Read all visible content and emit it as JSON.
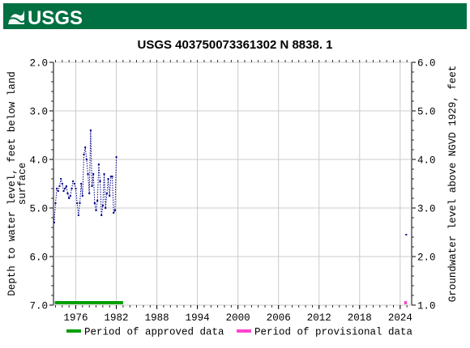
{
  "header": {
    "logo_text": "USGS",
    "band_color": "#006f41"
  },
  "chart_data": {
    "type": "scatter",
    "title": "USGS 403750073361302 N  8838. 1",
    "ylabel_left_line1": "Depth to water level, feet below land",
    "ylabel_left_line2": "surface",
    "ylabel_right": "Groundwater level above NGVD 1929, feet",
    "x_axis": {
      "range": [
        1972.7,
        2025.7
      ],
      "ticks": [
        1976,
        1982,
        1988,
        1994,
        2000,
        2006,
        2012,
        2018,
        2024
      ],
      "tick_labels": [
        "1976",
        "1982",
        "1988",
        "1994",
        "2000",
        "2006",
        "2012",
        "2018",
        "2024"
      ]
    },
    "y_left": {
      "range": [
        2.0,
        7.0
      ],
      "inverted": true,
      "ticks": [
        2.0,
        3.0,
        4.0,
        5.0,
        6.0,
        7.0
      ],
      "tick_labels": [
        "2.0",
        "3.0",
        "4.0",
        "5.0",
        "6.0",
        "7.0"
      ]
    },
    "y_right": {
      "range": [
        6.0,
        1.0
      ],
      "ticks": [
        6.0,
        5.0,
        4.0,
        3.0,
        2.0,
        1.0
      ],
      "tick_labels": [
        "6.0",
        "5.0",
        "4.0",
        "3.0",
        "2.0",
        "1.0"
      ]
    },
    "series": [
      {
        "name": "Depth to water level",
        "color": "#00008b",
        "style": "dotted-with-markers",
        "x": [
          1972.8,
          1973.0,
          1973.2,
          1973.4,
          1973.6,
          1973.8,
          1974.0,
          1974.2,
          1974.4,
          1974.6,
          1974.8,
          1975.0,
          1975.2,
          1975.4,
          1975.6,
          1975.8,
          1976.0,
          1976.2,
          1976.4,
          1976.6,
          1976.8,
          1977.0,
          1977.2,
          1977.4,
          1977.6,
          1977.8,
          1978.0,
          1978.2,
          1978.4,
          1978.6,
          1978.8,
          1979.0,
          1979.2,
          1979.4,
          1979.6,
          1979.8,
          1980.0,
          1980.2,
          1980.4,
          1980.6,
          1980.8,
          1981.0,
          1981.2,
          1981.4,
          1981.6,
          1981.8,
          1982.0,
          1982.2,
          1982.4,
          1982.6,
          1982.8,
          1983.0,
          2024.9
        ],
        "y": [
          5.3,
          4.9,
          4.6,
          4.65,
          4.55,
          4.4,
          4.5,
          4.65,
          4.6,
          4.55,
          4.7,
          4.8,
          4.75,
          4.6,
          4.45,
          4.5,
          4.6,
          4.9,
          5.15,
          4.9,
          4.5,
          4.75,
          3.9,
          3.75,
          4.0,
          4.3,
          4.7,
          3.4,
          4.55,
          4.3,
          4.9,
          5.05,
          4.85,
          4.1,
          4.45,
          5.15,
          4.95,
          4.3,
          5.0,
          4.7,
          4.4,
          4.75,
          4.35,
          4.35,
          5.1,
          5.05,
          3.95,
          null,
          null,
          null,
          null,
          null,
          5.55
        ]
      }
    ],
    "legend": {
      "placement": "bottom",
      "entries": [
        {
          "label": "Period of approved data",
          "color": "#00a000",
          "x_range": [
            1972.9,
            1983.0
          ]
        },
        {
          "label": "Period of provisional data",
          "color": "#ff44cc",
          "x_range": [
            2024.6,
            2025.0
          ]
        }
      ]
    },
    "grid": true
  }
}
